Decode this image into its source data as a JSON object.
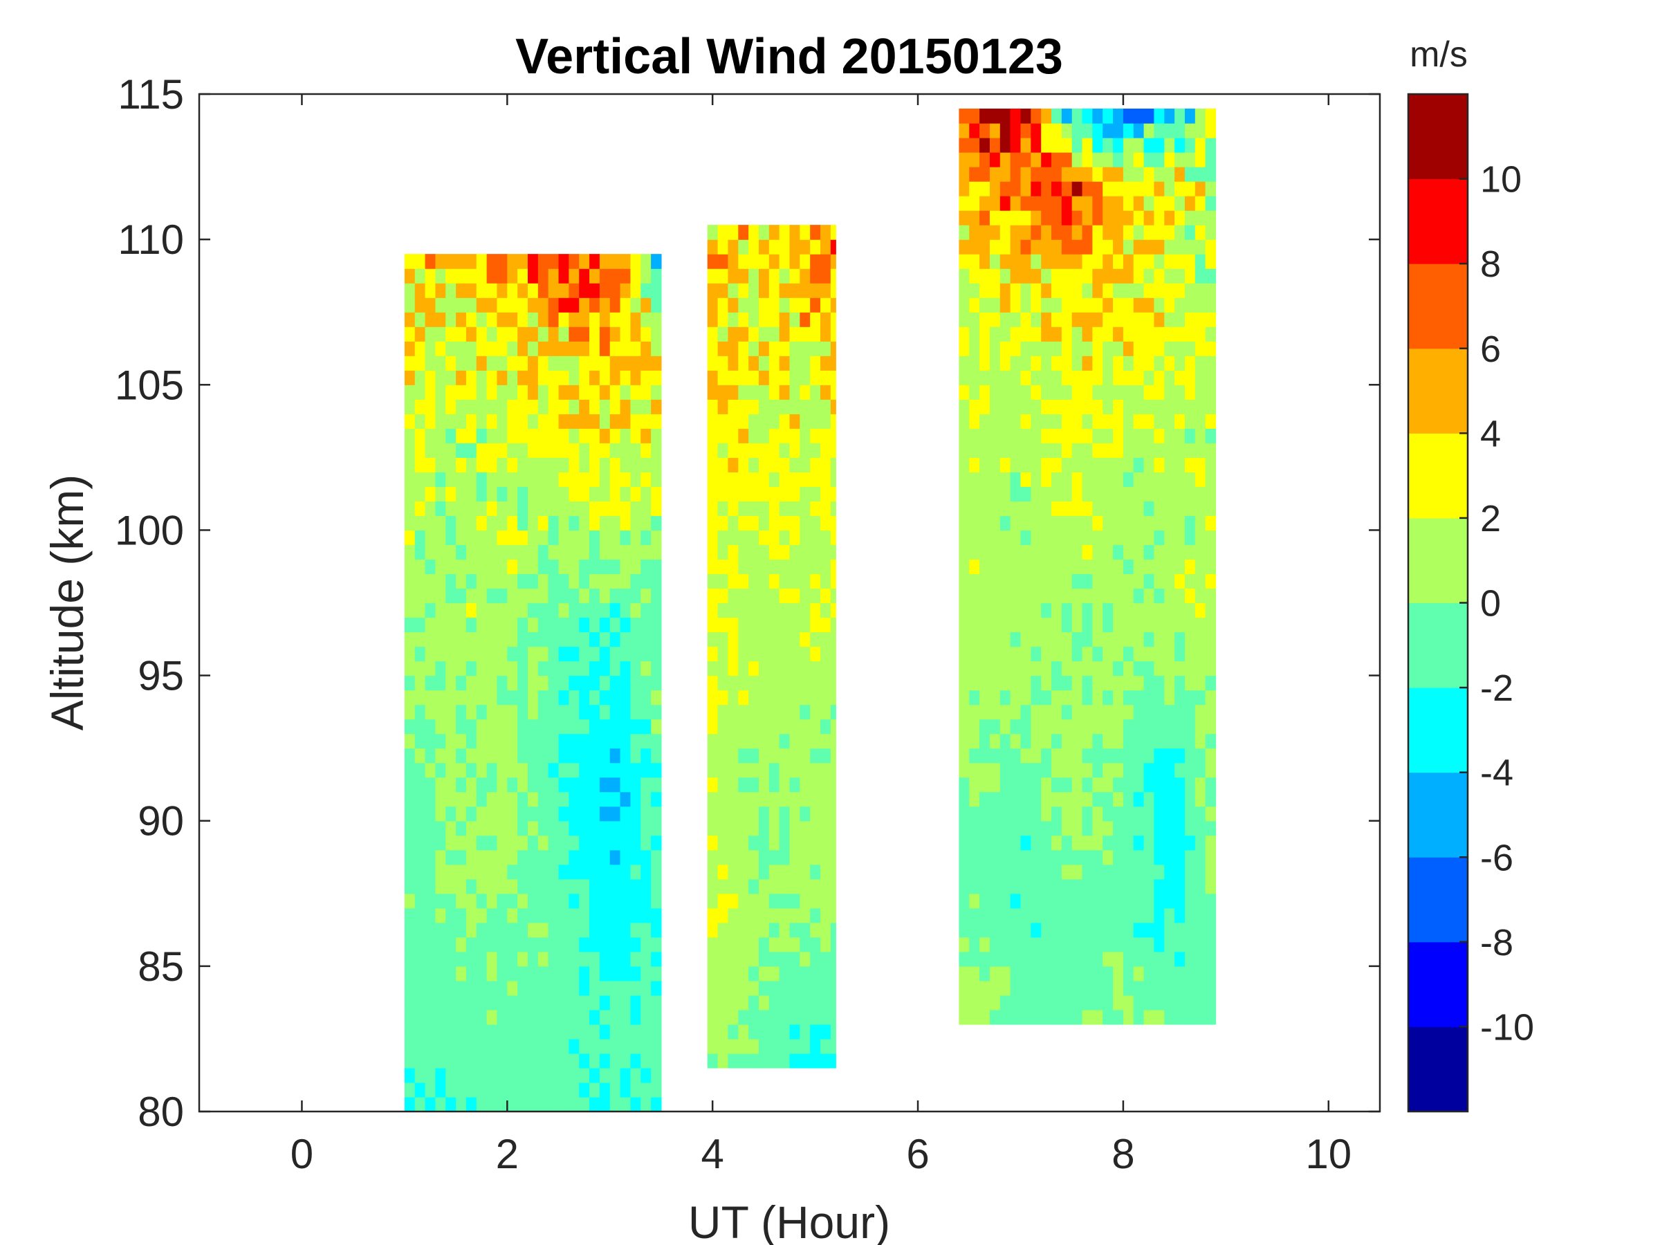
{
  "chart_data": {
    "type": "heatmap",
    "subtype": "filled-contour",
    "title": "Vertical Wind 20150123",
    "xlabel": "UT (Hour)",
    "ylabel": "Altitude (km)",
    "xlim": [
      -1,
      10.5
    ],
    "ylim": [
      80,
      115
    ],
    "xticks": [
      0,
      2,
      4,
      6,
      8,
      10
    ],
    "xtick_labels": [
      "0",
      "2",
      "4",
      "6",
      "8",
      "10"
    ],
    "yticks": [
      80,
      85,
      90,
      95,
      100,
      105,
      110,
      115
    ],
    "ytick_labels": [
      "80",
      "85",
      "90",
      "95",
      "100",
      "105",
      "110",
      "115"
    ],
    "colorbar": {
      "units": "m/s",
      "range": [
        -12,
        12
      ],
      "levels": [
        -12,
        -10,
        -8,
        -6,
        -4,
        -2,
        0,
        2,
        4,
        6,
        8,
        10,
        12
      ],
      "tick_values": [
        -10,
        -8,
        -6,
        -4,
        -2,
        0,
        2,
        4,
        6,
        8,
        10
      ],
      "tick_labels": [
        "-10",
        "-8",
        "-6",
        "-4",
        "-2",
        "0",
        "2",
        "4",
        "6",
        "8",
        "10"
      ],
      "colors": [
        "#00009f",
        "#0000ff",
        "#005fff",
        "#00afff",
        "#00ffff",
        "#5fffaf",
        "#afff5f",
        "#ffff00",
        "#ffaf00",
        "#ff5f00",
        "#ff0000",
        "#9f0000"
      ]
    },
    "segments": [
      {
        "name": "segment-1",
        "ut_range": [
          1.0,
          3.5
        ],
        "altitude_range": [
          80.0,
          109.5
        ],
        "altitude_step": 0.5,
        "profiles": [
          {
            "ut": 1.0,
            "values": [
              -2.5,
              -1.5,
              -0.5,
              -1.0,
              -1.5,
              -0.5,
              0.5,
              1.0,
              1.5,
              2.5,
              3.5,
              4.5
            ]
          },
          {
            "ut": 1.5,
            "values": [
              -1.5,
              -1.0,
              -0.5,
              0.5,
              0.5,
              0.5,
              1.0,
              0.5,
              1.0,
              1.5,
              2.5,
              3.5
            ]
          },
          {
            "ut": 2.0,
            "values": [
              -1.0,
              -0.5,
              -0.5,
              0.0,
              0.5,
              0.5,
              0.5,
              1.0,
              1.5,
              2.5,
              3.0,
              6.0
            ]
          },
          {
            "ut": 2.5,
            "values": [
              -1.5,
              -1.0,
              -0.5,
              -1.0,
              -1.5,
              -1.5,
              -1.0,
              0.0,
              1.5,
              3.0,
              4.5,
              9.0
            ]
          },
          {
            "ut": 3.0,
            "values": [
              -2.0,
              -1.5,
              -2.5,
              -3.5,
              -4.5,
              -3.0,
              -2.0,
              0.5,
              2.5,
              3.5,
              5.0,
              8.0
            ]
          },
          {
            "ut": 3.5,
            "values": [
              -1.5,
              -1.0,
              -1.5,
              -2.0,
              -1.0,
              -0.5,
              0.0,
              0.5,
              1.5,
              2.0,
              2.5,
              -6.0
            ]
          }
        ]
      },
      {
        "name": "segment-2",
        "ut_range": [
          3.95,
          5.2
        ],
        "altitude_range": [
          81.5,
          110.5
        ],
        "altitude_step": 0.5,
        "profiles": [
          {
            "ut": 4.0,
            "values": [
              0.5,
              1.5,
              2.5,
              1.5,
              1.0,
              2.0,
              2.0,
              3.0,
              3.5,
              3.5,
              4.5,
              5.0
            ]
          },
          {
            "ut": 4.5,
            "values": [
              -1.0,
              0.0,
              0.5,
              -0.5,
              0.5,
              1.0,
              1.0,
              1.5,
              2.0,
              2.5,
              3.0,
              4.0
            ]
          },
          {
            "ut": 5.0,
            "values": [
              -2.5,
              -1.0,
              0.5,
              1.0,
              0.5,
              1.0,
              1.5,
              2.0,
              2.5,
              3.0,
              5.0,
              6.5
            ]
          }
        ]
      },
      {
        "name": "segment-3",
        "ut_range": [
          6.4,
          8.9
        ],
        "altitude_range": [
          83.0,
          114.5
        ],
        "altitude_step": 0.5,
        "profiles": [
          {
            "ut": 6.5,
            "values": [
              1.5,
              0.0,
              -0.5,
              0.5,
              1.0,
              1.0,
              1.0,
              1.5,
              2.0,
              2.5,
              6.0,
              9.0
            ]
          },
          {
            "ut": 7.0,
            "values": [
              -1.0,
              -1.5,
              -1.5,
              -1.0,
              0.5,
              1.0,
              0.5,
              1.0,
              2.0,
              3.0,
              7.0,
              10.0
            ]
          },
          {
            "ut": 7.5,
            "values": [
              -1.0,
              -1.0,
              0.0,
              0.5,
              0.0,
              0.5,
              1.5,
              2.0,
              3.0,
              4.0,
              8.0,
              -6.0
            ]
          },
          {
            "ut": 8.0,
            "values": [
              0.5,
              -1.0,
              -1.0,
              -0.5,
              0.5,
              0.5,
              1.0,
              1.5,
              2.5,
              3.5,
              4.0,
              -8.0
            ]
          },
          {
            "ut": 8.5,
            "values": [
              -0.5,
              -2.0,
              -3.5,
              -2.5,
              0.0,
              1.0,
              0.5,
              1.0,
              2.0,
              2.0,
              3.0,
              -5.0
            ]
          },
          {
            "ut": 8.9,
            "values": [
              -1.0,
              -0.5,
              0.5,
              1.0,
              1.0,
              1.5,
              1.0,
              1.0,
              1.5,
              1.0,
              1.5,
              2.0
            ]
          }
        ]
      }
    ]
  }
}
